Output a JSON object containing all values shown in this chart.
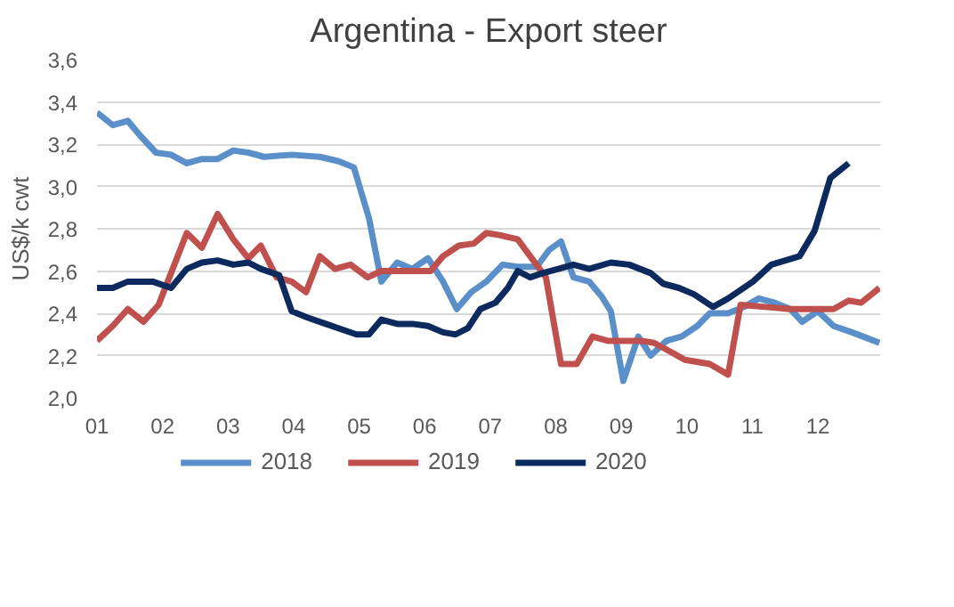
{
  "chart_data": {
    "type": "line",
    "title": "Argentina - Export steer",
    "ylabel": "US$/k cwt",
    "xlim": [
      1,
      12.95
    ],
    "ylim": [
      2.0,
      3.6
    ],
    "xticks": [
      {
        "value": 1,
        "label": "01"
      },
      {
        "value": 2,
        "label": "02"
      },
      {
        "value": 3,
        "label": "03"
      },
      {
        "value": 4,
        "label": "04"
      },
      {
        "value": 5,
        "label": "05"
      },
      {
        "value": 6,
        "label": "06"
      },
      {
        "value": 7,
        "label": "07"
      },
      {
        "value": 8,
        "label": "08"
      },
      {
        "value": 9,
        "label": "09"
      },
      {
        "value": 10,
        "label": "10"
      },
      {
        "value": 11,
        "label": "11"
      },
      {
        "value": 12,
        "label": "12"
      }
    ],
    "yticks": [
      {
        "value": 2.0,
        "label": "2,0"
      },
      {
        "value": 2.2,
        "label": "2,2"
      },
      {
        "value": 2.4,
        "label": "2,4"
      },
      {
        "value": 2.6,
        "label": "2,6"
      },
      {
        "value": 2.8,
        "label": "2,8"
      },
      {
        "value": 3.0,
        "label": "3,0"
      },
      {
        "value": 3.2,
        "label": "3,2"
      },
      {
        "value": 3.4,
        "label": "3,4"
      },
      {
        "value": 3.6,
        "label": "3,6"
      }
    ],
    "grid": "y",
    "legend": "bottom",
    "marker": "none",
    "line_style": "solid",
    "series": [
      {
        "name": "2018",
        "color": "#5b8fc9",
        "x": [
          1.0,
          1.24,
          1.47,
          1.66,
          1.9,
          2.13,
          2.37,
          2.6,
          2.84,
          3.08,
          3.31,
          3.55,
          3.97,
          4.4,
          4.68,
          4.92,
          5.15,
          5.34,
          5.58,
          5.81,
          6.05,
          6.28,
          6.49,
          6.71,
          6.94,
          7.19,
          7.42,
          7.71,
          7.9,
          8.08,
          8.27,
          8.51,
          8.7,
          8.84,
          9.03,
          9.26,
          9.45,
          9.69,
          9.92,
          10.16,
          10.35,
          10.63,
          10.87,
          11.1,
          11.34,
          11.58,
          11.76,
          12.0,
          12.24,
          12.52,
          12.94
        ],
        "values": [
          3.35,
          3.29,
          3.31,
          3.24,
          3.16,
          3.15,
          3.11,
          3.13,
          3.13,
          3.17,
          3.16,
          3.14,
          3.15,
          3.14,
          3.12,
          3.09,
          2.85,
          2.55,
          2.64,
          2.61,
          2.66,
          2.55,
          2.42,
          2.5,
          2.55,
          2.63,
          2.62,
          2.62,
          2.7,
          2.74,
          2.57,
          2.55,
          2.48,
          2.41,
          2.08,
          2.29,
          2.2,
          2.27,
          2.29,
          2.34,
          2.4,
          2.4,
          2.43,
          2.47,
          2.45,
          2.42,
          2.36,
          2.41,
          2.34,
          2.31,
          2.26
        ]
      },
      {
        "name": "2019",
        "color": "#c0504d",
        "x": [
          1.0,
          1.24,
          1.47,
          1.71,
          1.94,
          2.13,
          2.37,
          2.6,
          2.84,
          3.08,
          3.31,
          3.5,
          3.74,
          3.97,
          4.19,
          4.4,
          4.63,
          4.87,
          5.13,
          5.34,
          6.09,
          6.28,
          6.52,
          6.75,
          6.94,
          7.14,
          7.42,
          7.61,
          7.85,
          8.08,
          8.32,
          8.56,
          8.79,
          9.31,
          9.5,
          9.74,
          9.97,
          10.35,
          10.63,
          10.82,
          11.2,
          11.58,
          12.24,
          12.47,
          12.66,
          12.94
        ],
        "values": [
          2.27,
          2.34,
          2.42,
          2.36,
          2.44,
          2.59,
          2.78,
          2.71,
          2.87,
          2.75,
          2.66,
          2.72,
          2.57,
          2.55,
          2.5,
          2.67,
          2.61,
          2.63,
          2.57,
          2.6,
          2.6,
          2.67,
          2.72,
          2.73,
          2.78,
          2.77,
          2.75,
          2.67,
          2.57,
          2.16,
          2.16,
          2.29,
          2.27,
          2.27,
          2.26,
          2.22,
          2.18,
          2.16,
          2.11,
          2.44,
          2.43,
          2.42,
          2.42,
          2.46,
          2.45,
          2.52
        ]
      },
      {
        "name": "2020",
        "color": "#0d2a5e",
        "x": [
          1.0,
          1.24,
          1.47,
          1.85,
          2.13,
          2.37,
          2.6,
          2.84,
          3.08,
          3.31,
          3.5,
          3.78,
          3.97,
          4.21,
          4.49,
          4.77,
          4.96,
          5.15,
          5.34,
          5.58,
          5.81,
          6.05,
          6.28,
          6.47,
          6.66,
          6.85,
          7.08,
          7.27,
          7.42,
          7.61,
          7.8,
          8.04,
          8.27,
          8.51,
          8.84,
          9.12,
          9.45,
          9.64,
          9.88,
          10.11,
          10.4,
          10.63,
          11.01,
          11.29,
          11.72,
          11.95,
          12.19,
          12.47
        ],
        "values": [
          2.52,
          2.52,
          2.55,
          2.55,
          2.52,
          2.61,
          2.64,
          2.65,
          2.63,
          2.64,
          2.61,
          2.58,
          2.41,
          2.38,
          2.35,
          2.32,
          2.3,
          2.3,
          2.37,
          2.35,
          2.35,
          2.34,
          2.31,
          2.3,
          2.33,
          2.42,
          2.45,
          2.52,
          2.6,
          2.57,
          2.59,
          2.61,
          2.63,
          2.61,
          2.64,
          2.63,
          2.59,
          2.54,
          2.52,
          2.49,
          2.43,
          2.47,
          2.55,
          2.63,
          2.67,
          2.79,
          3.04,
          3.11
        ]
      }
    ]
  }
}
